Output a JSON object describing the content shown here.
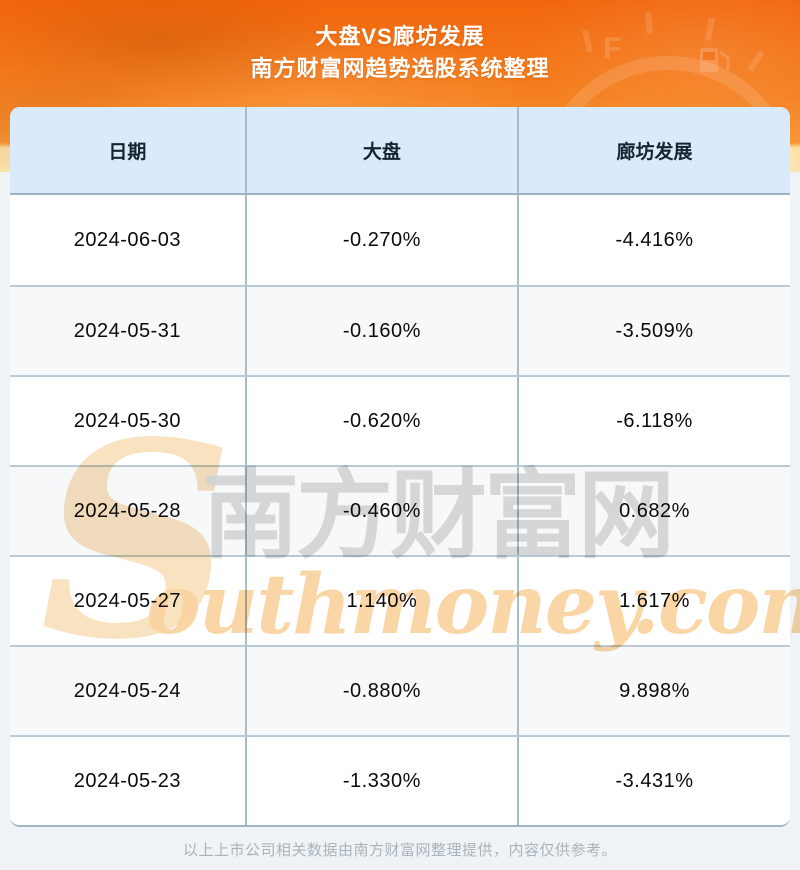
{
  "colors": {
    "hero_orange_top": "#F1650B",
    "hero_orange_bottom": "#F89636",
    "hero_yellow_wave": "#FBDFA6",
    "page_background": "#EFF3F6",
    "table_header_background": "#D9EAFA",
    "zebra_row_background": "#F6F8FA",
    "grid_line": "#A9BCC9",
    "watermark_gray": "#D9D9D9",
    "watermark_orange": "#FAD3A0"
  },
  "hero": {
    "title_line1": "大盘VS廊坊发展",
    "title_line2": "南方财富网趋势选股系统整理"
  },
  "chart_data": {
    "type": "table",
    "title": "大盘VS廊坊发展",
    "subtitle": "南方财富网趋势选股系统整理",
    "columns": [
      "日期",
      "大盘",
      "廊坊发展"
    ],
    "rows": [
      [
        "2024-06-03",
        "-0.270%",
        "-4.416%"
      ],
      [
        "2024-05-31",
        "-0.160%",
        "-3.509%"
      ],
      [
        "2024-05-30",
        "-0.620%",
        "-6.118%"
      ],
      [
        "2024-05-28",
        "-0.460%",
        "0.682%"
      ],
      [
        "2024-05-27",
        "1.140%",
        "1.617%"
      ],
      [
        "2024-05-24",
        "-0.880%",
        "9.898%"
      ],
      [
        "2024-05-23",
        "-1.330%",
        "-3.431%"
      ]
    ]
  },
  "table": {
    "columns": [
      "日期",
      "大盘",
      "廊坊发展"
    ],
    "rows": [
      {
        "date": "2024-06-03",
        "market": "-0.270%",
        "stock": "-4.416%"
      },
      {
        "date": "2024-05-31",
        "market": "-0.160%",
        "stock": "-3.509%"
      },
      {
        "date": "2024-05-30",
        "market": "-0.620%",
        "stock": "-6.118%"
      },
      {
        "date": "2024-05-28",
        "market": "-0.460%",
        "stock": "0.682%"
      },
      {
        "date": "2024-05-27",
        "market": "1.140%",
        "stock": "1.617%"
      },
      {
        "date": "2024-05-24",
        "market": "-0.880%",
        "stock": "9.898%"
      },
      {
        "date": "2024-05-23",
        "market": "-1.330%",
        "stock": "-3.431%"
      }
    ]
  },
  "watermark": {
    "initial": "S",
    "cjk": "南方财富网",
    "latin": "outhmoney.com"
  },
  "footer": {
    "disclaimer": "以上上市公司相关数据由南方财富网整理提供，内容仅供参考。"
  }
}
